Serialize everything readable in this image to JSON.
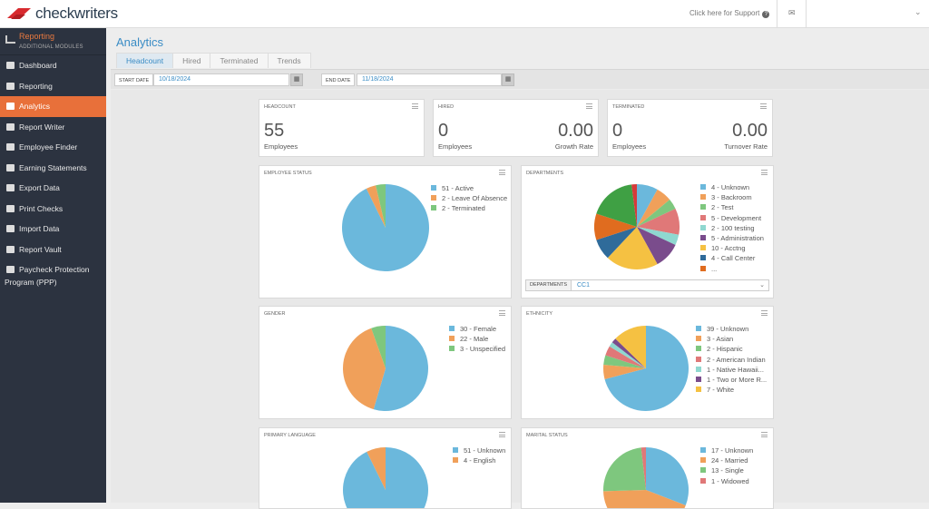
{
  "topbar": {
    "logo": "checkwriters",
    "support": "Click here for Support",
    "help_icon": "question-circle-icon",
    "mail_icon": "envelope-icon",
    "menu_icon": "chevron-down-icon"
  },
  "sidebar": {
    "module": "Reporting",
    "module_sub": "ADDITIONAL MODULES",
    "items": [
      {
        "label": "Dashboard",
        "icon": "grid-icon"
      },
      {
        "label": "Reporting",
        "icon": "bar-chart-icon"
      },
      {
        "label": "Analytics",
        "icon": "pie-chart-icon",
        "active": true
      },
      {
        "label": "Report Writer",
        "icon": "checkbox-icon"
      },
      {
        "label": "Employee Finder",
        "icon": "binoculars-icon"
      },
      {
        "label": "Earning Statements",
        "icon": "statement-icon"
      },
      {
        "label": "Export Data",
        "icon": "export-icon"
      },
      {
        "label": "Print Checks",
        "icon": "printer-icon"
      },
      {
        "label": "Import Data",
        "icon": "import-icon"
      },
      {
        "label": "Report Vault",
        "icon": "lock-icon"
      },
      {
        "label": "Paycheck Protection",
        "label2": "Program (PPP)",
        "icon": "credit-card-icon"
      }
    ]
  },
  "main": {
    "title": "Analytics",
    "tabs": [
      {
        "label": "Headcount",
        "active": true
      },
      {
        "label": "Hired"
      },
      {
        "label": "Terminated"
      },
      {
        "label": "Trends"
      }
    ],
    "filters": {
      "start_label": "START DATE",
      "start_value": "10/18/2024",
      "end_label": "END DATE",
      "end_value": "11/18/2024"
    },
    "kpis": {
      "headcount": {
        "title": "HEADCOUNT",
        "value": "55",
        "label": "Employees"
      },
      "hired": {
        "title": "HIRED",
        "value": "0",
        "label": "Employees",
        "rate": "0.00",
        "rate_label": "Growth Rate"
      },
      "terminated": {
        "title": "TERMINATED",
        "value": "0",
        "label": "Employees",
        "rate": "0.00",
        "rate_label": "Turnover Rate"
      }
    },
    "departments_select": {
      "label": "DEPARTMENTS",
      "value": "CC1"
    }
  },
  "chart_data": [
    {
      "type": "pie",
      "title": "EMPLOYEE STATUS",
      "slices": [
        {
          "label": "51 - Active",
          "value": 51,
          "color": "#6bb8dc"
        },
        {
          "label": "2 - Leave Of Absence",
          "value": 2,
          "color": "#f0a05a"
        },
        {
          "label": "2 - Terminated",
          "value": 2,
          "color": "#7ec77e"
        }
      ]
    },
    {
      "type": "pie",
      "title": "DEPARTMENTS",
      "slices": [
        {
          "label": "4 - Unknown",
          "value": 4,
          "color": "#6bb8dc"
        },
        {
          "label": "3 - Backroom",
          "value": 3,
          "color": "#f0a05a"
        },
        {
          "label": "2 - Test",
          "value": 2,
          "color": "#7ec77e"
        },
        {
          "label": "5 - Development",
          "value": 5,
          "color": "#e07878"
        },
        {
          "label": "2 - 100 testing",
          "value": 2,
          "color": "#8fd8d0"
        },
        {
          "label": "5 - Administration",
          "value": 5,
          "color": "#7a4c8c"
        },
        {
          "label": "10 - Acctng",
          "value": 10,
          "color": "#f5c142"
        },
        {
          "label": "4 - Call Center",
          "value": 4,
          "color": "#2f6b9a"
        },
        {
          "label": "...",
          "value": 5,
          "color": "#e06c1f"
        },
        {
          "label": "",
          "value": 9,
          "color": "#3fa044"
        },
        {
          "label": "",
          "value": 1,
          "color": "#d63a3a"
        }
      ]
    },
    {
      "type": "pie",
      "title": "GENDER",
      "slices": [
        {
          "label": "30 - Female",
          "value": 30,
          "color": "#6bb8dc"
        },
        {
          "label": "22 - Male",
          "value": 22,
          "color": "#f0a05a"
        },
        {
          "label": "3 - Unspecified",
          "value": 3,
          "color": "#7ec77e"
        }
      ]
    },
    {
      "type": "pie",
      "title": "ETHNICITY",
      "slices": [
        {
          "label": "39 - Unknown",
          "value": 39,
          "color": "#6bb8dc"
        },
        {
          "label": "3 - Asian",
          "value": 3,
          "color": "#f0a05a"
        },
        {
          "label": "2 - Hispanic",
          "value": 2,
          "color": "#7ec77e"
        },
        {
          "label": "2 - American Indian",
          "value": 2,
          "color": "#e07878"
        },
        {
          "label": "1 - Native Hawaii...",
          "value": 1,
          "color": "#8fd8d0"
        },
        {
          "label": "1 - Two or More R...",
          "value": 1,
          "color": "#7a4c8c"
        },
        {
          "label": "7 - White",
          "value": 7,
          "color": "#f5c142"
        }
      ]
    },
    {
      "type": "pie",
      "title": "PRIMARY LANGUAGE",
      "slices": [
        {
          "label": "51 - Unknown",
          "value": 51,
          "color": "#6bb8dc"
        },
        {
          "label": "4 - English",
          "value": 4,
          "color": "#f0a05a"
        }
      ]
    },
    {
      "type": "pie",
      "title": "MARITAL STATUS",
      "slices": [
        {
          "label": "17 - Unknown",
          "value": 17,
          "color": "#6bb8dc"
        },
        {
          "label": "24 - Married",
          "value": 24,
          "color": "#f0a05a"
        },
        {
          "label": "13 - Single",
          "value": 13,
          "color": "#7ec77e"
        },
        {
          "label": "1 - Widowed",
          "value": 1,
          "color": "#e07878"
        }
      ]
    }
  ]
}
